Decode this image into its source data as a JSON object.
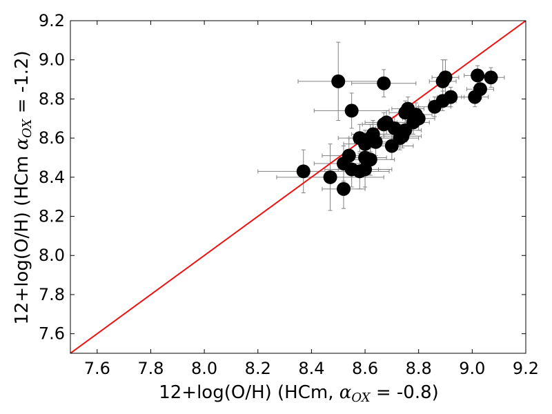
{
  "chart_data": {
    "type": "scatter",
    "title": "",
    "xlabel": {
      "prefix": "12+log(O/H) (HCm, ",
      "symbol": "α",
      "subscript": "OX",
      "suffix": " = -0.8)"
    },
    "ylabel": {
      "prefix": "12+log(O/H) (HCm ",
      "symbol": "α",
      "subscript": "OX",
      "suffix": " = -1.2)"
    },
    "xlim": [
      7.5,
      9.2
    ],
    "ylim": [
      7.5,
      9.2
    ],
    "xticks": [
      7.6,
      7.8,
      8.0,
      8.2,
      8.4,
      8.6,
      8.8,
      9.0,
      9.2
    ],
    "yticks": [
      7.6,
      7.8,
      8.0,
      8.2,
      8.4,
      8.6,
      8.8,
      9.0,
      9.2
    ],
    "xtick_labels": [
      "7.6",
      "7.8",
      "8.0",
      "8.2",
      "8.4",
      "8.6",
      "8.8",
      "9.0",
      "9.2"
    ],
    "ytick_labels": [
      "7.6",
      "7.8",
      "8.0",
      "8.2",
      "8.4",
      "8.6",
      "8.8",
      "9.0",
      "9.2"
    ],
    "grid": false,
    "colors": {
      "points": "#000000",
      "error_bars": "#808080",
      "identity_line": "#ee1111",
      "axes": "#000000"
    },
    "identity_line": {
      "x": [
        7.5,
        9.2
      ],
      "y": [
        7.5,
        9.2
      ]
    },
    "points": [
      {
        "x": 8.37,
        "y": 8.43,
        "xerr": 0.17,
        "yerr": 0.11
      },
      {
        "x": 8.47,
        "y": 8.4,
        "xerr": 0.2,
        "yerr": 0.17
      },
      {
        "x": 8.5,
        "y": 8.89,
        "xerr": 0.15,
        "yerr": 0.2
      },
      {
        "x": 8.52,
        "y": 8.34,
        "xerr": 0.08,
        "yerr": 0.1
      },
      {
        "x": 8.52,
        "y": 8.47,
        "xerr": 0.11,
        "yerr": 0.09
      },
      {
        "x": 8.54,
        "y": 8.51,
        "xerr": 0.1,
        "yerr": 0.09
      },
      {
        "x": 8.55,
        "y": 8.74,
        "xerr": 0.14,
        "yerr": 0.09
      },
      {
        "x": 8.55,
        "y": 8.44,
        "xerr": 0.1,
        "yerr": 0.09
      },
      {
        "x": 8.58,
        "y": 8.6,
        "xerr": 0.08,
        "yerr": 0.07
      },
      {
        "x": 8.58,
        "y": 8.43,
        "xerr": 0.11,
        "yerr": 0.09
      },
      {
        "x": 8.6,
        "y": 8.44,
        "xerr": 0.1,
        "yerr": 0.09
      },
      {
        "x": 8.6,
        "y": 8.57,
        "xerr": 0.08,
        "yerr": 0.07
      },
      {
        "x": 8.6,
        "y": 8.5,
        "xerr": 0.08,
        "yerr": 0.07
      },
      {
        "x": 8.62,
        "y": 8.49,
        "xerr": 0.09,
        "yerr": 0.08
      },
      {
        "x": 8.62,
        "y": 8.6,
        "xerr": 0.08,
        "yerr": 0.07
      },
      {
        "x": 8.63,
        "y": 8.62,
        "xerr": 0.08,
        "yerr": 0.07
      },
      {
        "x": 8.64,
        "y": 8.58,
        "xerr": 0.08,
        "yerr": 0.07
      },
      {
        "x": 8.67,
        "y": 8.88,
        "xerr": 0.12,
        "yerr": 0.07
      },
      {
        "x": 8.67,
        "y": 8.67,
        "xerr": 0.08,
        "yerr": 0.06
      },
      {
        "x": 8.68,
        "y": 8.68,
        "xerr": 0.08,
        "yerr": 0.06
      },
      {
        "x": 8.7,
        "y": 8.56,
        "xerr": 0.08,
        "yerr": 0.07
      },
      {
        "x": 8.71,
        "y": 8.65,
        "xerr": 0.07,
        "yerr": 0.06
      },
      {
        "x": 8.73,
        "y": 8.6,
        "xerr": 0.07,
        "yerr": 0.06
      },
      {
        "x": 8.74,
        "y": 8.61,
        "xerr": 0.07,
        "yerr": 0.06
      },
      {
        "x": 8.75,
        "y": 8.64,
        "xerr": 0.06,
        "yerr": 0.06
      },
      {
        "x": 8.75,
        "y": 8.73,
        "xerr": 0.06,
        "yerr": 0.06
      },
      {
        "x": 8.76,
        "y": 8.75,
        "xerr": 0.06,
        "yerr": 0.06
      },
      {
        "x": 8.78,
        "y": 8.68,
        "xerr": 0.06,
        "yerr": 0.06
      },
      {
        "x": 8.79,
        "y": 8.72,
        "xerr": 0.06,
        "yerr": 0.06
      },
      {
        "x": 8.8,
        "y": 8.7,
        "xerr": 0.06,
        "yerr": 0.06
      },
      {
        "x": 8.86,
        "y": 8.76,
        "xerr": 0.06,
        "yerr": 0.05
      },
      {
        "x": 8.89,
        "y": 8.89,
        "xerr": 0.05,
        "yerr": 0.11
      },
      {
        "x": 8.89,
        "y": 8.79,
        "xerr": 0.05,
        "yerr": 0.05
      },
      {
        "x": 8.9,
        "y": 8.91,
        "xerr": 0.05,
        "yerr": 0.09
      },
      {
        "x": 8.92,
        "y": 8.81,
        "xerr": 0.05,
        "yerr": 0.05
      },
      {
        "x": 9.01,
        "y": 8.81,
        "xerr": 0.05,
        "yerr": 0.05
      },
      {
        "x": 9.02,
        "y": 8.92,
        "xerr": 0.05,
        "yerr": 0.05
      },
      {
        "x": 9.03,
        "y": 8.85,
        "xerr": 0.05,
        "yerr": 0.05
      },
      {
        "x": 9.07,
        "y": 8.91,
        "xerr": 0.05,
        "yerr": 0.05
      }
    ]
  }
}
